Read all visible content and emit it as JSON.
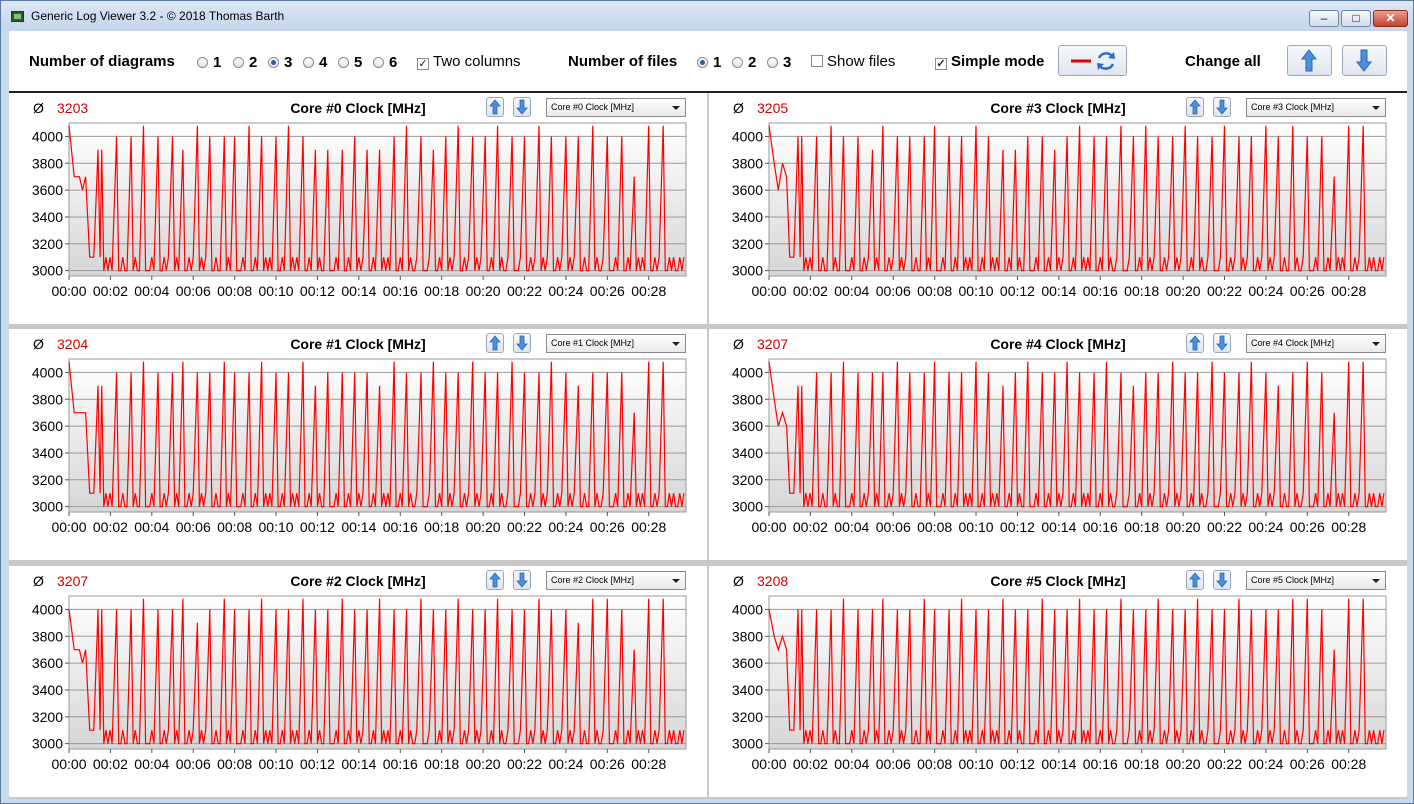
{
  "window": {
    "title": "Generic Log Viewer 3.2 - © 2018 Thomas Barth",
    "minimize_label": "‒",
    "maximize_label": "□",
    "close_label": "✕"
  },
  "toolbar": {
    "num_diagrams_label": "Number of diagrams",
    "diagram_options": [
      "1",
      "2",
      "3",
      "4",
      "5",
      "6"
    ],
    "diagram_selected": "3",
    "two_columns_label": "Two columns",
    "two_columns_checked": true,
    "num_files_label": "Number of files",
    "file_options": [
      "1",
      "2",
      "3"
    ],
    "file_selected": "1",
    "show_files_label": "Show files",
    "show_files_checked": false,
    "simple_mode_label": "Simple mode",
    "simple_mode_checked": true,
    "change_all_label": "Change all"
  },
  "panels": [
    {
      "avg_symbol": "Ø",
      "avg": "3203",
      "title": "Core #0 Clock [MHz]",
      "select": "Core #0 Clock [MHz]"
    },
    {
      "avg_symbol": "Ø",
      "avg": "3205",
      "title": "Core #3 Clock [MHz]",
      "select": "Core #3 Clock [MHz]"
    },
    {
      "avg_symbol": "Ø",
      "avg": "3204",
      "title": "Core #1 Clock [MHz]",
      "select": "Core #1 Clock [MHz]"
    },
    {
      "avg_symbol": "Ø",
      "avg": "3207",
      "title": "Core #4 Clock [MHz]",
      "select": "Core #4 Clock [MHz]"
    },
    {
      "avg_symbol": "Ø",
      "avg": "3207",
      "title": "Core #2 Clock [MHz]",
      "select": "Core #2 Clock [MHz]"
    },
    {
      "avg_symbol": "Ø",
      "avg": "3208",
      "title": "Core #5 Clock [MHz]",
      "select": "Core #5 Clock [MHz]"
    }
  ],
  "chart_data": [
    {
      "type": "line",
      "title": "Core #0 Clock [MHz]",
      "ylim": [
        2960,
        4100
      ],
      "yticks": [
        3000,
        3200,
        3400,
        3600,
        3800,
        4000
      ],
      "xlim": [
        0,
        29.8
      ],
      "xtick_labels": [
        "00:00",
        "00:02",
        "00:04",
        "00:06",
        "00:08",
        "00:10",
        "00:12",
        "00:14",
        "00:16",
        "00:18",
        "00:20",
        "00:22",
        "00:24",
        "00:26",
        "00:28"
      ],
      "series": [
        {
          "color": "#ff0000",
          "start": [
            [
              0,
              4080
            ],
            [
              0.25,
              3700
            ],
            [
              0.5,
              3700
            ],
            [
              0.65,
              3600
            ],
            [
              0.8,
              3700
            ],
            [
              1.0,
              3100
            ],
            [
              1.2,
              3100
            ],
            [
              1.4,
              3900
            ],
            [
              1.5,
              3100
            ]
          ],
          "peaks": [
            1.5,
            2.3,
            3.0,
            3.6,
            4.3,
            5.0,
            5.5,
            6.2,
            6.8,
            7.5,
            8.0,
            8.7,
            9.3,
            10.0,
            10.6,
            11.3,
            11.9,
            12.5,
            13.2,
            13.8,
            14.4,
            15.0,
            15.7,
            16.3,
            17.0,
            17.6,
            18.2,
            18.8,
            19.5,
            20.1,
            20.7,
            21.4,
            22.0,
            22.7,
            23.3,
            24.0,
            24.6,
            25.3,
            26.0,
            26.7,
            27.3,
            28.0,
            28.7
          ],
          "peak_values": [
            3900,
            4000,
            4000,
            4080,
            4000,
            4000,
            3900,
            4080,
            4000,
            4000,
            4000,
            4080,
            4000,
            4000,
            4080,
            4000,
            3900,
            3900,
            3900,
            4000,
            3900,
            3900,
            4000,
            4080,
            4000,
            3900,
            4000,
            4080,
            4000,
            4000,
            4080,
            4000,
            4000,
            4080,
            4000,
            4000,
            4000,
            4080,
            4000,
            4000,
            3700,
            4080,
            4080
          ]
        }
      ]
    },
    {
      "type": "line",
      "title": "Core #3 Clock [MHz]",
      "ylim": [
        2960,
        4100
      ],
      "yticks": [
        3000,
        3200,
        3400,
        3600,
        3800,
        4000
      ],
      "xlim": [
        0,
        29.8
      ],
      "xtick_labels": [
        "00:00",
        "00:02",
        "00:04",
        "00:06",
        "00:08",
        "00:10",
        "00:12",
        "00:14",
        "00:16",
        "00:18",
        "00:20",
        "00:22",
        "00:24",
        "00:26",
        "00:28"
      ],
      "series": [
        {
          "color": "#ff0000",
          "start": [
            [
              0,
              4080
            ],
            [
              0.25,
              3800
            ],
            [
              0.45,
              3600
            ],
            [
              0.65,
              3800
            ],
            [
              0.85,
              3700
            ],
            [
              1.0,
              3100
            ],
            [
              1.2,
              3100
            ],
            [
              1.4,
              4000
            ],
            [
              1.5,
              3100
            ]
          ],
          "peaks": [
            1.5,
            2.3,
            3.0,
            3.6,
            4.3,
            5.0,
            5.5,
            6.2,
            6.8,
            7.5,
            8.0,
            8.7,
            9.3,
            10.0,
            10.6,
            11.3,
            11.9,
            12.5,
            13.2,
            13.8,
            14.4,
            15.0,
            15.7,
            16.3,
            17.0,
            17.6,
            18.2,
            18.8,
            19.5,
            20.1,
            20.7,
            21.4,
            22.0,
            22.7,
            23.3,
            24.0,
            24.6,
            25.3,
            26.0,
            26.7,
            27.3,
            28.0,
            28.7
          ],
          "peak_values": [
            4000,
            4000,
            4080,
            4000,
            4000,
            3900,
            4080,
            4000,
            4000,
            4000,
            4080,
            4000,
            4000,
            4080,
            4000,
            3900,
            3900,
            4000,
            4000,
            3900,
            4000,
            4080,
            4000,
            4000,
            4080,
            4000,
            4080,
            4000,
            4000,
            4080,
            4000,
            4000,
            4080,
            4000,
            4000,
            4080,
            4000,
            4080,
            4000,
            4000,
            3700,
            4080,
            4080
          ]
        }
      ]
    },
    {
      "type": "line",
      "title": "Core #1 Clock [MHz]",
      "ylim": [
        2960,
        4100
      ],
      "yticks": [
        3000,
        3200,
        3400,
        3600,
        3800,
        4000
      ],
      "xlim": [
        0,
        29.8
      ],
      "xtick_labels": [
        "00:00",
        "00:02",
        "00:04",
        "00:06",
        "00:08",
        "00:10",
        "00:12",
        "00:14",
        "00:16",
        "00:18",
        "00:20",
        "00:22",
        "00:24",
        "00:26",
        "00:28"
      ],
      "series": [
        {
          "color": "#ff0000",
          "start": [
            [
              0,
              4080
            ],
            [
              0.25,
              3700
            ],
            [
              0.5,
              3700
            ],
            [
              0.65,
              3700
            ],
            [
              0.8,
              3700
            ],
            [
              1.0,
              3100
            ],
            [
              1.2,
              3100
            ],
            [
              1.4,
              3900
            ],
            [
              1.5,
              3100
            ]
          ],
          "peaks": [
            1.5,
            2.3,
            3.0,
            3.6,
            4.3,
            5.0,
            5.5,
            6.2,
            6.8,
            7.5,
            8.0,
            8.7,
            9.3,
            10.0,
            10.6,
            11.3,
            11.9,
            12.5,
            13.2,
            13.8,
            14.4,
            15.0,
            15.7,
            16.3,
            17.0,
            17.6,
            18.2,
            18.8,
            19.5,
            20.1,
            20.7,
            21.4,
            22.0,
            22.7,
            23.3,
            24.0,
            24.6,
            25.3,
            26.0,
            26.7,
            27.3,
            28.0,
            28.7
          ],
          "peak_values": [
            3900,
            4000,
            4000,
            4080,
            4000,
            4000,
            4080,
            4000,
            4000,
            4080,
            4000,
            4000,
            4080,
            4000,
            4000,
            4080,
            3900,
            4000,
            4000,
            4000,
            4000,
            3900,
            4080,
            4000,
            4000,
            4080,
            4000,
            4000,
            4080,
            4000,
            4000,
            4080,
            4000,
            4000,
            4080,
            4000,
            3900,
            4000,
            4000,
            4000,
            3700,
            4080,
            4080
          ]
        }
      ]
    },
    {
      "type": "line",
      "title": "Core #4 Clock [MHz]",
      "ylim": [
        2960,
        4100
      ],
      "yticks": [
        3000,
        3200,
        3400,
        3600,
        3800,
        4000
      ],
      "xlim": [
        0,
        29.8
      ],
      "xtick_labels": [
        "00:00",
        "00:02",
        "00:04",
        "00:06",
        "00:08",
        "00:10",
        "00:12",
        "00:14",
        "00:16",
        "00:18",
        "00:20",
        "00:22",
        "00:24",
        "00:26",
        "00:28"
      ],
      "series": [
        {
          "color": "#ff0000",
          "start": [
            [
              0,
              4080
            ],
            [
              0.25,
              3800
            ],
            [
              0.45,
              3600
            ],
            [
              0.65,
              3700
            ],
            [
              0.85,
              3600
            ],
            [
              1.0,
              3100
            ],
            [
              1.2,
              3100
            ],
            [
              1.4,
              3900
            ],
            [
              1.5,
              3100
            ]
          ],
          "peaks": [
            1.5,
            2.3,
            3.0,
            3.6,
            4.3,
            5.0,
            5.5,
            6.2,
            6.8,
            7.5,
            8.0,
            8.7,
            9.3,
            10.0,
            10.6,
            11.3,
            11.9,
            12.5,
            13.2,
            13.8,
            14.4,
            15.0,
            15.7,
            16.3,
            17.0,
            17.6,
            18.2,
            18.8,
            19.5,
            20.1,
            20.7,
            21.4,
            22.0,
            22.7,
            23.3,
            24.0,
            24.6,
            25.3,
            26.0,
            26.7,
            27.3,
            28.0,
            28.7
          ],
          "peak_values": [
            3900,
            4000,
            4000,
            4080,
            4000,
            4000,
            4000,
            4080,
            4000,
            4000,
            4080,
            4000,
            4000,
            4080,
            4000,
            3900,
            4000,
            4080,
            4000,
            4000,
            4080,
            4000,
            4000,
            4080,
            4000,
            3900,
            4000,
            4000,
            4080,
            4000,
            4000,
            4080,
            4000,
            4000,
            4080,
            4000,
            3900,
            4000,
            4080,
            4000,
            3700,
            4080,
            4080
          ]
        }
      ]
    },
    {
      "type": "line",
      "title": "Core #2 Clock [MHz]",
      "ylim": [
        2960,
        4100
      ],
      "yticks": [
        3000,
        3200,
        3400,
        3600,
        3800,
        4000
      ],
      "xlim": [
        0,
        29.8
      ],
      "xtick_labels": [
        "00:00",
        "00:02",
        "00:04",
        "00:06",
        "00:08",
        "00:10",
        "00:12",
        "00:14",
        "00:16",
        "00:18",
        "00:20",
        "00:22",
        "00:24",
        "00:26",
        "00:28"
      ],
      "series": [
        {
          "color": "#ff0000",
          "start": [
            [
              0,
              4000
            ],
            [
              0.25,
              3700
            ],
            [
              0.5,
              3700
            ],
            [
              0.65,
              3600
            ],
            [
              0.8,
              3700
            ],
            [
              1.0,
              3100
            ],
            [
              1.2,
              3100
            ],
            [
              1.4,
              4000
            ],
            [
              1.5,
              3100
            ]
          ],
          "peaks": [
            1.5,
            2.3,
            3.0,
            3.6,
            4.3,
            5.0,
            5.5,
            6.2,
            6.8,
            7.5,
            8.0,
            8.7,
            9.3,
            10.0,
            10.6,
            11.3,
            11.9,
            12.5,
            13.2,
            13.8,
            14.4,
            15.0,
            15.7,
            16.3,
            17.0,
            17.6,
            18.2,
            18.8,
            19.5,
            20.1,
            20.7,
            21.4,
            22.0,
            22.7,
            23.3,
            24.0,
            24.6,
            25.3,
            26.0,
            26.7,
            27.3,
            28.0,
            28.7
          ],
          "peak_values": [
            4000,
            4000,
            4000,
            4080,
            4000,
            4000,
            4080,
            3900,
            4000,
            4080,
            4000,
            4000,
            4080,
            4000,
            4000,
            4080,
            4000,
            4000,
            4080,
            4000,
            4000,
            4080,
            4000,
            4000,
            4080,
            4000,
            4000,
            4080,
            4000,
            4000,
            4080,
            4000,
            4000,
            4080,
            4000,
            4000,
            3900,
            4080,
            4080,
            4000,
            3700,
            4080,
            4080
          ]
        }
      ]
    },
    {
      "type": "line",
      "title": "Core #5 Clock [MHz]",
      "ylim": [
        2960,
        4100
      ],
      "yticks": [
        3000,
        3200,
        3400,
        3600,
        3800,
        4000
      ],
      "xlim": [
        0,
        29.8
      ],
      "xtick_labels": [
        "00:00",
        "00:02",
        "00:04",
        "00:06",
        "00:08",
        "00:10",
        "00:12",
        "00:14",
        "00:16",
        "00:18",
        "00:20",
        "00:22",
        "00:24",
        "00:26",
        "00:28"
      ],
      "series": [
        {
          "color": "#ff0000",
          "start": [
            [
              0,
              4000
            ],
            [
              0.25,
              3800
            ],
            [
              0.45,
              3700
            ],
            [
              0.65,
              3800
            ],
            [
              0.85,
              3700
            ],
            [
              1.0,
              3100
            ],
            [
              1.2,
              3100
            ],
            [
              1.4,
              4000
            ],
            [
              1.5,
              3100
            ]
          ],
          "peaks": [
            1.5,
            2.3,
            3.0,
            3.6,
            4.3,
            5.0,
            5.5,
            6.2,
            6.8,
            7.5,
            8.0,
            8.7,
            9.3,
            10.0,
            10.6,
            11.3,
            11.9,
            12.5,
            13.2,
            13.8,
            14.4,
            15.0,
            15.7,
            16.3,
            17.0,
            17.6,
            18.2,
            18.8,
            19.5,
            20.1,
            20.7,
            21.4,
            22.0,
            22.7,
            23.3,
            24.0,
            24.6,
            25.3,
            26.0,
            26.7,
            27.3,
            28.0,
            28.7
          ],
          "peak_values": [
            4000,
            4000,
            4000,
            4080,
            4000,
            4000,
            4080,
            4000,
            4000,
            4080,
            4000,
            4000,
            4080,
            4000,
            4000,
            4080,
            4000,
            4000,
            4080,
            4000,
            4000,
            4080,
            4000,
            4000,
            4080,
            4000,
            4000,
            4080,
            4000,
            4000,
            4080,
            4000,
            4000,
            4080,
            4000,
            4000,
            4000,
            4080,
            4080,
            4000,
            3700,
            4080,
            4080
          ]
        }
      ]
    }
  ]
}
